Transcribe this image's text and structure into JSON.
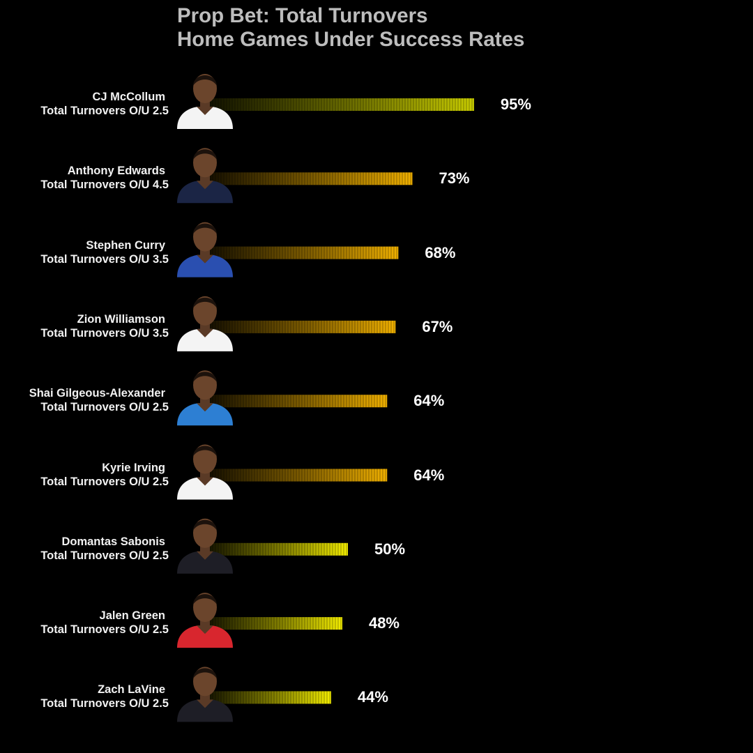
{
  "title_line1": "Prop Bet: Total Turnovers",
  "title_line2": "Home Games Under Success Rates",
  "chart_data": {
    "type": "bar",
    "orientation": "horizontal",
    "title": "Prop Bet: Total Turnovers\nHome Games Under Success Rates",
    "categories": [
      "CJ McCollum\nTotal Turnovers O/U 2.5",
      "Anthony Edwards\nTotal Turnovers O/U 4.5",
      "Stephen Curry\nTotal Turnovers O/U 3.5",
      "Zion Williamson\nTotal Turnovers O/U 3.5",
      "Shai Gilgeous-Alexander\nTotal Turnovers O/U 2.5",
      "Kyrie Irving\nTotal Turnovers O/U 2.5",
      "Domantas Sabonis\nTotal Turnovers O/U 2.5",
      "Jalen Green\nTotal Turnovers O/U 2.5",
      "Zach LaVine\nTotal Turnovers O/U 2.5"
    ],
    "players": [
      "CJ McCollum",
      "Anthony Edwards",
      "Stephen Curry",
      "Zion Williamson",
      "Shai Gilgeous-Alexander",
      "Kyrie Irving",
      "Domantas Sabonis",
      "Jalen Green",
      "Zach LaVine"
    ],
    "props": [
      "Total Turnovers O/U 2.5",
      "Total Turnovers O/U 4.5",
      "Total Turnovers O/U 3.5",
      "Total Turnovers O/U 3.5",
      "Total Turnovers O/U 2.5",
      "Total Turnovers O/U 2.5",
      "Total Turnovers O/U 2.5",
      "Total Turnovers O/U 2.5",
      "Total Turnovers O/U 2.5"
    ],
    "values": [
      95,
      73,
      68,
      67,
      64,
      64,
      50,
      48,
      44
    ],
    "value_labels": [
      "95%",
      "73%",
      "68%",
      "67%",
      "64%",
      "64%",
      "50%",
      "48%",
      "44%"
    ],
    "bar_colors": [
      "#c8cc00",
      "#f0b000",
      "#f0b000",
      "#f0b000",
      "#f0b000",
      "#f0b000",
      "#f2ec00",
      "#f2ec00",
      "#f2ec00"
    ],
    "jersey_colors": [
      "#f4f4f4",
      "#1b2545",
      "#2a4fb0",
      "#f4f4f4",
      "#2d7fd3",
      "#f4f4f4",
      "#1e1e26",
      "#d8262e",
      "#1e1e26"
    ],
    "background": "#000000",
    "xlabel": "",
    "ylabel": "",
    "grid": false
  }
}
